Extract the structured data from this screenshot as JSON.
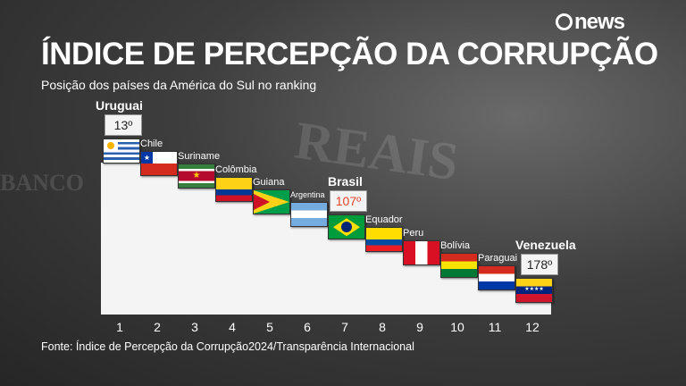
{
  "header": {
    "title": "ÍNDICE DE PERCEPÇÃO DA CORRUPÇÃO",
    "subtitle": "Posição dos países da América do Sul no ranking",
    "logo": "news"
  },
  "chart_data": {
    "type": "bar",
    "title": "ÍNDICE DE PERCEPÇÃO DA CORRUPÇÃO",
    "subtitle": "Posição dos países da América do Sul no ranking",
    "categories": [
      "1",
      "2",
      "3",
      "4",
      "5",
      "6",
      "7",
      "8",
      "9",
      "10",
      "11",
      "12"
    ],
    "countries": [
      "Uruguai",
      "Chile",
      "Suriname",
      "Colômbia",
      "Guiana",
      "Argentina",
      "Brasil",
      "Equador",
      "Peru",
      "Bolívia",
      "Paraguai",
      "Venezuela"
    ],
    "highlighted": [
      {
        "country": "Uruguai",
        "rank_label": "13º"
      },
      {
        "country": "Brasil",
        "rank_label": "107º"
      },
      {
        "country": "Venezuela",
        "rank_label": "178º"
      }
    ],
    "highlight_color": "#e8452c"
  },
  "footer": {
    "source": "Fonte: Índice de Percepção da Corrupção2024/Transparência Internacional"
  }
}
